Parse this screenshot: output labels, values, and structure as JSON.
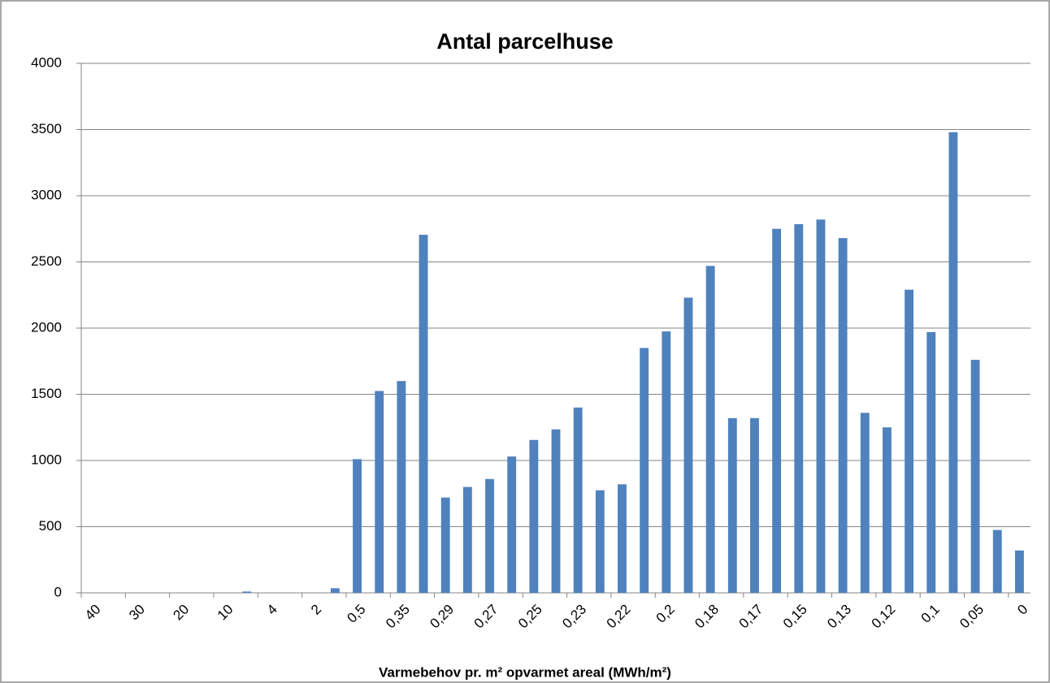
{
  "chart_data": {
    "type": "bar",
    "title": "Antal parcelhuse",
    "x_label": "Varmebehov pr. m² opvarmet areal (MWh/m²)",
    "categories": [
      "40",
      null,
      "30",
      null,
      "20",
      null,
      "10",
      null,
      "4",
      null,
      "2",
      null,
      "0,5",
      null,
      "0,35",
      null,
      "0,29",
      null,
      "0,27",
      null,
      "0,25",
      null,
      "0,23",
      null,
      "0,22",
      null,
      "0,2",
      null,
      "0,18",
      null,
      "0,17",
      null,
      "0,15",
      null,
      "0,13",
      null,
      "0,12",
      null,
      "0,1",
      null,
      "0,05",
      null,
      "0"
    ],
    "values": [
      0,
      0,
      0,
      0,
      0,
      0,
      0,
      10,
      0,
      0,
      0,
      35,
      1010,
      1525,
      1600,
      2705,
      720,
      800,
      860,
      1030,
      1155,
      1235,
      1400,
      775,
      820,
      1850,
      1975,
      2230,
      2470,
      1320,
      1320,
      2750,
      2785,
      2820,
      2680,
      1360,
      1250,
      2290,
      1970,
      3480,
      1760,
      475,
      320
    ],
    "color": "#4f81bd",
    "ylim": [
      0,
      4000
    ],
    "yticks": [
      0,
      500,
      1000,
      1500,
      2000,
      2500,
      3000,
      3500,
      4000
    ],
    "grid": true
  }
}
